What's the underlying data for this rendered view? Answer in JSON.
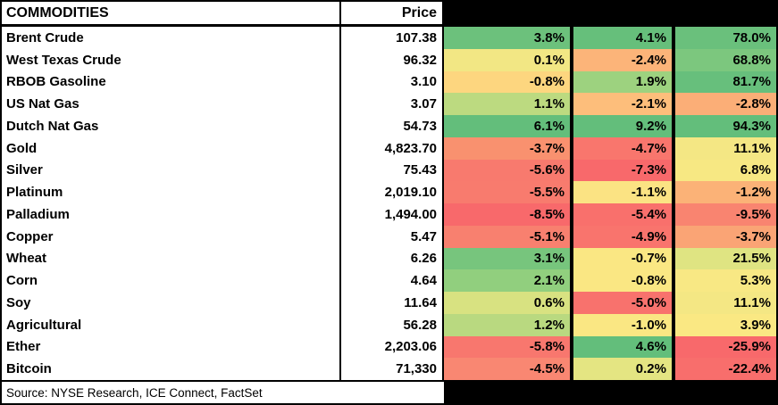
{
  "header": {
    "commodities_label": "COMMODITIES",
    "price_label": "Price",
    "pct_col_headers": [
      "",
      "",
      ""
    ]
  },
  "footer": {
    "source": "Source: NYSE Research, ICE Connect, FactSet"
  },
  "colors": {
    "border": "#000000",
    "cell_bg": "#FFFFFF",
    "text": "#000000",
    "scale_min_red": "#F8696B",
    "scale_mid_yellow": "#FFEB84",
    "scale_max_green": "#63BE7B"
  },
  "rows": [
    {
      "name": "Brent Crude",
      "price": "107.38",
      "pcts": [
        {
          "value": "3.8%",
          "bg": "#6CC17C"
        },
        {
          "value": "4.1%",
          "bg": "#66BF7B"
        },
        {
          "value": "78.0%",
          "bg": "#6AC07C"
        }
      ]
    },
    {
      "name": "West Texas Crude",
      "price": "96.32",
      "pcts": [
        {
          "value": "0.1%",
          "bg": "#F2E784"
        },
        {
          "value": "-2.4%",
          "bg": "#FCB479"
        },
        {
          "value": "68.8%",
          "bg": "#7CC77E"
        }
      ]
    },
    {
      "name": "RBOB Gasoline",
      "price": "3.10",
      "pcts": [
        {
          "value": "-0.8%",
          "bg": "#FDD67F"
        },
        {
          "value": "1.9%",
          "bg": "#9DD27F"
        },
        {
          "value": "81.7%",
          "bg": "#67BF7C"
        }
      ]
    },
    {
      "name": "US Nat Gas",
      "price": "3.07",
      "pcts": [
        {
          "value": "1.1%",
          "bg": "#BCDA80"
        },
        {
          "value": "-2.1%",
          "bg": "#FDBE7B"
        },
        {
          "value": "-2.8%",
          "bg": "#FBAE77"
        }
      ]
    },
    {
      "name": "Dutch Nat Gas",
      "price": "54.73",
      "pcts": [
        {
          "value": "6.1%",
          "bg": "#63BE7B"
        },
        {
          "value": "9.2%",
          "bg": "#63BE7B"
        },
        {
          "value": "94.3%",
          "bg": "#63BE7B"
        }
      ]
    },
    {
      "name": "Gold",
      "price": "4,823.70",
      "pcts": [
        {
          "value": "-3.7%",
          "bg": "#F9916F"
        },
        {
          "value": "-4.7%",
          "bg": "#F9766D"
        },
        {
          "value": "11.1%",
          "bg": "#F4E784"
        }
      ]
    },
    {
      "name": "Silver",
      "price": "75.43",
      "pcts": [
        {
          "value": "-5.6%",
          "bg": "#F87A6E"
        },
        {
          "value": "-7.3%",
          "bg": "#F8696B"
        },
        {
          "value": "6.8%",
          "bg": "#F7E883"
        }
      ]
    },
    {
      "name": "Platinum",
      "price": "2,019.10",
      "pcts": [
        {
          "value": "-5.5%",
          "bg": "#F87B6E"
        },
        {
          "value": "-1.1%",
          "bg": "#FBE383"
        },
        {
          "value": "-1.2%",
          "bg": "#FBB277"
        }
      ]
    },
    {
      "name": "Palladium",
      "price": "1,494.00",
      "pcts": [
        {
          "value": "-8.5%",
          "bg": "#F8696B"
        },
        {
          "value": "-5.4%",
          "bg": "#F9706C"
        },
        {
          "value": "-9.5%",
          "bg": "#F98470"
        }
      ]
    },
    {
      "name": "Copper",
      "price": "5.47",
      "pcts": [
        {
          "value": "-5.1%",
          "bg": "#F8806F"
        },
        {
          "value": "-4.9%",
          "bg": "#F9746D"
        },
        {
          "value": "-3.7%",
          "bg": "#FAA475"
        }
      ]
    },
    {
      "name": "Wheat",
      "price": "6.26",
      "pcts": [
        {
          "value": "3.1%",
          "bg": "#77C57D"
        },
        {
          "value": "-0.7%",
          "bg": "#FAE783"
        },
        {
          "value": "21.5%",
          "bg": "#DFE482"
        }
      ]
    },
    {
      "name": "Corn",
      "price": "4.64",
      "pcts": [
        {
          "value": "2.1%",
          "bg": "#91CF7E"
        },
        {
          "value": "-0.8%",
          "bg": "#FAE783"
        },
        {
          "value": "5.3%",
          "bg": "#F8E884"
        }
      ]
    },
    {
      "name": "Soy",
      "price": "11.64",
      "pcts": [
        {
          "value": "0.6%",
          "bg": "#D8E281"
        },
        {
          "value": "-5.0%",
          "bg": "#F8726D"
        },
        {
          "value": "11.1%",
          "bg": "#F4E784"
        }
      ]
    },
    {
      "name": "Agricultural",
      "price": "56.28",
      "pcts": [
        {
          "value": "1.2%",
          "bg": "#B9D980"
        },
        {
          "value": "-1.0%",
          "bg": "#FAE783"
        },
        {
          "value": "3.9%",
          "bg": "#FAE883"
        }
      ]
    },
    {
      "name": "Ether",
      "price": "2,203.06",
      "pcts": [
        {
          "value": "-5.8%",
          "bg": "#F8776E"
        },
        {
          "value": "4.6%",
          "bg": "#63BE7B"
        },
        {
          "value": "-25.9%",
          "bg": "#F8696B"
        }
      ]
    },
    {
      "name": "Bitcoin",
      "price": "71,330",
      "pcts": [
        {
          "value": "-4.5%",
          "bg": "#F98772"
        },
        {
          "value": "0.2%",
          "bg": "#E4E582"
        },
        {
          "value": "-22.4%",
          "bg": "#F86E6C"
        }
      ]
    }
  ],
  "chart_data": {
    "type": "heatmap",
    "title": "COMMODITIES",
    "columns": [
      "COMMODITIES",
      "Price",
      "",
      "",
      ""
    ],
    "categories": [
      "Brent Crude",
      "West Texas Crude",
      "RBOB Gasoline",
      "US Nat Gas",
      "Dutch Nat Gas",
      "Gold",
      "Silver",
      "Platinum",
      "Palladium",
      "Copper",
      "Wheat",
      "Corn",
      "Soy",
      "Agricultural",
      "Ether",
      "Bitcoin"
    ],
    "prices": [
      "107.38",
      "96.32",
      "3.10",
      "3.07",
      "54.73",
      "4,823.70",
      "75.43",
      "2,019.10",
      "1,494.00",
      "5.47",
      "6.26",
      "4.64",
      "11.64",
      "56.28",
      "2,203.06",
      "71,330"
    ],
    "series": [
      {
        "name": "pct_column_1",
        "values": [
          3.8,
          0.1,
          -0.8,
          1.1,
          6.1,
          -3.7,
          -5.6,
          -5.5,
          -8.5,
          -5.1,
          3.1,
          2.1,
          0.6,
          1.2,
          -5.8,
          -4.5
        ]
      },
      {
        "name": "pct_column_2",
        "values": [
          4.1,
          -2.4,
          1.9,
          -2.1,
          9.2,
          -4.7,
          -7.3,
          -1.1,
          -5.4,
          -4.9,
          -0.7,
          -0.8,
          -5.0,
          -1.0,
          4.6,
          0.2
        ]
      },
      {
        "name": "pct_column_3",
        "values": [
          78.0,
          68.8,
          81.7,
          -2.8,
          94.3,
          11.1,
          6.8,
          -1.2,
          -9.5,
          -3.7,
          21.5,
          5.3,
          11.1,
          3.9,
          -25.9,
          -22.4
        ]
      }
    ],
    "color_scale": {
      "min_red": "#F8696B",
      "mid_yellow": "#FFEB84",
      "max_green": "#63BE7B"
    },
    "legend_position": "none",
    "grid": false,
    "source": "Source: NYSE Research, ICE Connect, FactSet"
  }
}
